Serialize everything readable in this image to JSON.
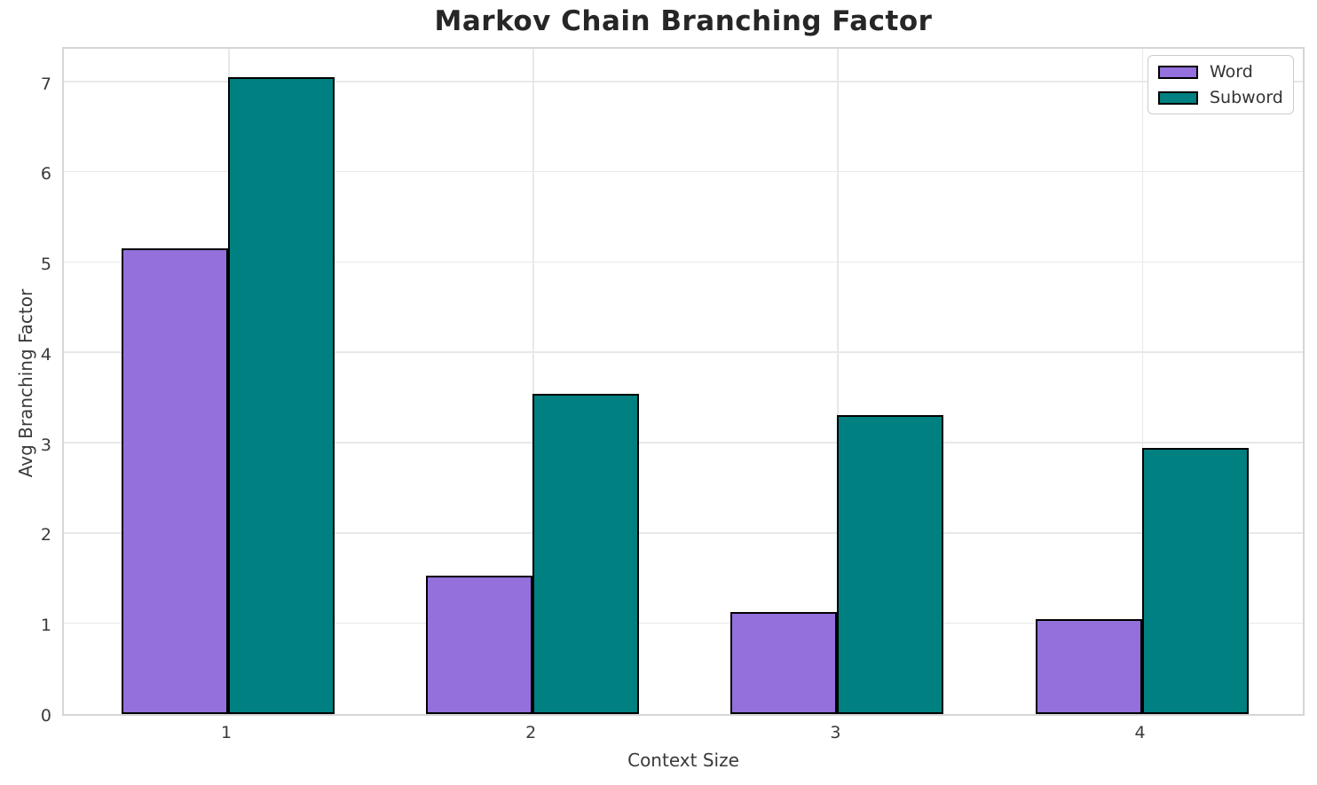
{
  "title": "Markov Chain Branching Factor",
  "chart_data": {
    "type": "bar",
    "title": "Markov Chain Branching Factor",
    "categories": [
      "1",
      "2",
      "3",
      "4"
    ],
    "series": [
      {
        "name": "Word",
        "color": "#9370DB",
        "values": [
          5.16,
          1.53,
          1.13,
          1.05
        ]
      },
      {
        "name": "Subword",
        "color": "#008080",
        "values": [
          7.06,
          3.55,
          3.31,
          2.95
        ]
      }
    ],
    "xlabel": "Context Size",
    "ylabel": "Avg Branching Factor",
    "ylim": [
      0,
      7.41
    ],
    "yticks": [
      0,
      1,
      2,
      3,
      4,
      5,
      6,
      7
    ],
    "grid": true,
    "legend_position": "upper right",
    "bar_edge_color": "#000000",
    "background_color": "#ffffff",
    "gridline_color": "#e8e8e8"
  }
}
